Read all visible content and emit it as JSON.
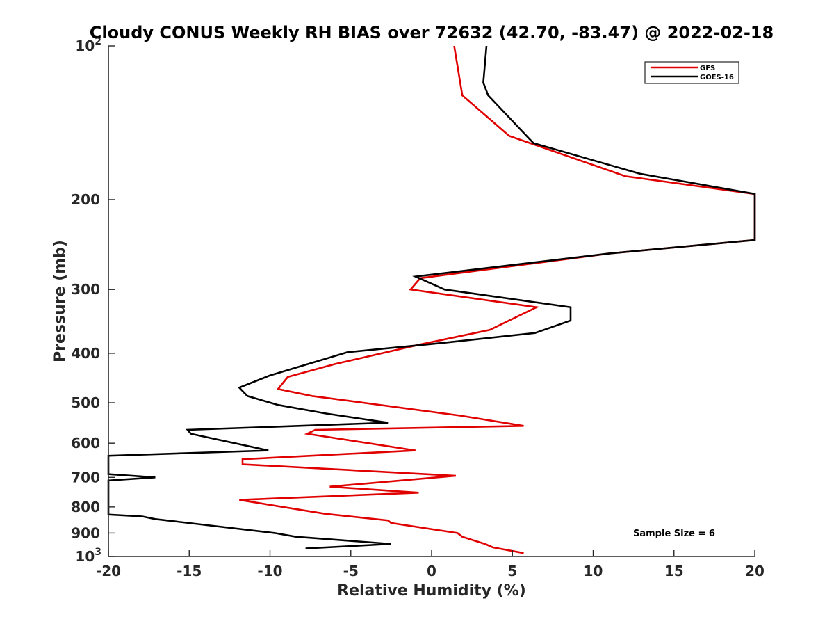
{
  "chart_data": {
    "type": "line",
    "title": "Cloudy CONUS Weekly RH BIAS over 72632 (42.70, -83.47) @ 2022-02-18",
    "xlabel": "Relative Humidity (%)",
    "ylabel": "Pressure (mb)",
    "xlim": [
      -20,
      20
    ],
    "ylim": [
      100,
      1000
    ],
    "y_scale": "log",
    "y_reversed": true,
    "grid": false,
    "legend_position": "top-right",
    "x_ticks": [
      -20,
      -15,
      -10,
      -5,
      0,
      5,
      10,
      15,
      20
    ],
    "x_tick_labels": [
      "-20",
      "-15",
      "-10",
      "-5",
      "0",
      "5",
      "10",
      "15",
      "20"
    ],
    "y_ticks": [
      100,
      200,
      300,
      400,
      500,
      600,
      700,
      800,
      900,
      1000
    ],
    "y_tick_labels": [
      "10^2",
      "200",
      "300",
      "400",
      "500",
      "600",
      "700",
      "800",
      "900",
      "10^3"
    ],
    "annotation": "Sample Size = 6",
    "series": [
      {
        "name": "GFS",
        "color": "#e00000",
        "x": [
          1.4,
          1.9,
          4.8,
          12.0,
          20.0,
          20.0,
          20.0,
          11.0,
          -0.7,
          -1.3,
          6.5,
          3.6,
          -0.8,
          -6.0,
          -8.9,
          -9.5,
          -7.4,
          1.8,
          5.7,
          -7.2,
          -7.7,
          -1.0,
          -11.7,
          -11.7,
          1.5,
          -6.3,
          -0.8,
          -11.9,
          -6.6,
          -2.7,
          -2.5,
          1.6,
          1.9,
          3.3,
          3.8,
          5.7
        ],
        "y": [
          100,
          125,
          150,
          180,
          195,
          200,
          240,
          255,
          285,
          300,
          325,
          360,
          385,
          420,
          445,
          470,
          485,
          530,
          555,
          565,
          575,
          620,
          645,
          660,
          695,
          730,
          750,
          775,
          825,
          850,
          860,
          900,
          915,
          945,
          960,
          985
        ]
      },
      {
        "name": "GOES-16",
        "color": "#000000",
        "x": [
          3.4,
          3.2,
          3.5,
          6.3,
          12.9,
          20.0,
          20.0,
          20.0,
          11.0,
          -1.0,
          0.8,
          8.6,
          8.6,
          6.4,
          0.6,
          -5.2,
          -10.0,
          -11.9,
          -11.4,
          -9.5,
          -6.5,
          -2.7,
          -15.1,
          -14.9,
          -10.1,
          -20.0,
          -20.0,
          -17.1,
          -20.0,
          -20.0,
          -20.0,
          -17.9,
          -17.1,
          -9.7,
          -8.4,
          -2.5,
          -7.8
        ],
        "y": [
          100,
          118,
          125,
          155,
          178,
          195,
          200,
          240,
          255,
          283,
          300,
          325,
          345,
          365,
          382,
          398,
          442,
          467,
          485,
          505,
          525,
          547,
          565,
          575,
          620,
          635,
          690,
          700,
          710,
          720,
          828,
          835,
          845,
          900,
          915,
          945,
          965
        ]
      }
    ]
  }
}
